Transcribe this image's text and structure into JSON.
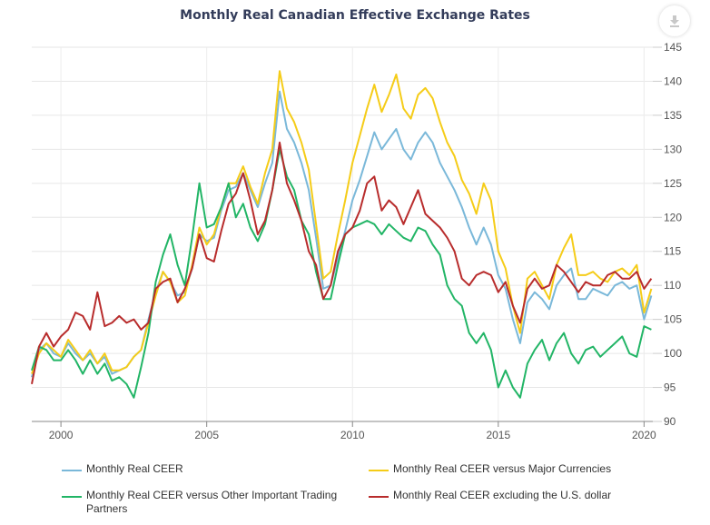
{
  "chart_data": {
    "type": "line",
    "title": "Monthly Real Canadian Effective Exchange Rates",
    "xlabel": "",
    "ylabel": "",
    "xlim": [
      1999.0,
      2020.3
    ],
    "ylim": [
      90,
      145
    ],
    "x_ticks": [
      "2000",
      "2005",
      "2010",
      "2015",
      "2020"
    ],
    "x_tick_values": [
      2000,
      2005,
      2010,
      2015,
      2020
    ],
    "y_ticks": [
      "90",
      "95",
      "100",
      "105",
      "110",
      "115",
      "120",
      "125",
      "130",
      "135",
      "140",
      "145"
    ],
    "y_tick_values": [
      90,
      95,
      100,
      105,
      110,
      115,
      120,
      125,
      130,
      135,
      140,
      145
    ],
    "y_axis_side": "right",
    "grid": true,
    "legend_position": "bottom",
    "x": [
      1999.0,
      1999.25,
      1999.5,
      1999.75,
      2000.0,
      2000.25,
      2000.5,
      2000.75,
      2001.0,
      2001.25,
      2001.5,
      2001.75,
      2002.0,
      2002.25,
      2002.5,
      2002.75,
      2003.0,
      2003.25,
      2003.5,
      2003.75,
      2004.0,
      2004.25,
      2004.5,
      2004.75,
      2005.0,
      2005.25,
      2005.5,
      2005.75,
      2006.0,
      2006.25,
      2006.5,
      2006.75,
      2007.0,
      2007.25,
      2007.5,
      2007.75,
      2008.0,
      2008.25,
      2008.5,
      2008.75,
      2009.0,
      2009.25,
      2009.5,
      2009.75,
      2010.0,
      2010.25,
      2010.5,
      2010.75,
      2011.0,
      2011.25,
      2011.5,
      2011.75,
      2012.0,
      2012.25,
      2012.5,
      2012.75,
      2013.0,
      2013.25,
      2013.5,
      2013.75,
      2014.0,
      2014.25,
      2014.5,
      2014.75,
      2015.0,
      2015.25,
      2015.5,
      2015.75,
      2016.0,
      2016.25,
      2016.5,
      2016.75,
      2017.0,
      2017.25,
      2017.5,
      2017.75,
      2018.0,
      2018.25,
      2018.5,
      2018.75,
      2019.0,
      2019.25,
      2019.5,
      2019.75,
      2020.0,
      2020.25
    ],
    "series": [
      {
        "name": "Monthly Real CEER",
        "color": "#7ab8d9",
        "values": [
          96.5,
          100.5,
          101.5,
          100,
          99.5,
          101.5,
          100,
          99,
          100,
          98.5,
          99.5,
          97,
          97.5,
          98,
          99.5,
          100.5,
          105,
          109,
          112,
          110.5,
          108.5,
          109,
          112.5,
          117.5,
          116.5,
          117,
          121,
          124,
          124.5,
          126.5,
          124,
          121.5,
          125,
          128,
          138.5,
          133,
          131,
          128,
          124,
          117,
          109.5,
          110,
          114,
          118,
          122.5,
          125.5,
          129,
          132.5,
          130,
          131.5,
          133,
          130,
          128.5,
          131,
          132.5,
          131,
          128,
          126,
          124,
          121.5,
          118.5,
          116,
          118.5,
          116,
          111.5,
          109.5,
          105,
          101.5,
          107.5,
          109,
          108,
          106.5,
          110,
          111.5,
          112.5,
          108,
          108,
          109.5,
          109,
          108.5,
          110,
          110.5,
          109.5,
          110,
          105,
          108.5
        ]
      },
      {
        "name": "Monthly Real CEER versus Major Currencies",
        "color": "#f5cc18",
        "values": [
          97,
          100,
          101.5,
          100.5,
          99.5,
          102,
          100.5,
          99,
          100.5,
          98.5,
          100,
          97.5,
          97.5,
          98,
          99.5,
          100.5,
          104.5,
          108.5,
          112,
          110.5,
          107.5,
          108.5,
          113,
          118.5,
          116,
          117.5,
          121.5,
          125,
          125,
          127.5,
          124.5,
          122,
          126.5,
          130,
          141.5,
          136,
          134,
          131,
          127,
          119,
          111,
          112,
          117.5,
          122.5,
          128,
          132,
          136,
          139.5,
          135.5,
          138,
          141,
          136,
          134.5,
          138,
          139,
          137.5,
          134,
          131,
          129,
          125.5,
          123.5,
          120.5,
          125,
          122.5,
          115,
          112.5,
          107,
          103,
          111,
          112,
          110,
          108,
          113,
          115.5,
          117.5,
          111.5,
          111.5,
          112,
          111,
          110.5,
          112,
          112.5,
          111.5,
          113,
          106,
          109.5
        ]
      },
      {
        "name": "Monthly Real CEER versus Other Important Trading Partners",
        "color": "#22b566",
        "values": [
          97.5,
          101,
          100.5,
          99,
          99,
          100.5,
          99,
          97,
          99,
          97,
          98.5,
          96,
          96.5,
          95.5,
          93.5,
          98,
          103,
          110.5,
          114.5,
          117.5,
          113,
          110,
          117,
          125,
          118.5,
          119,
          121.5,
          125,
          120,
          122,
          118.5,
          116.5,
          119,
          124,
          130,
          126,
          124,
          119.5,
          117.5,
          112,
          108,
          108,
          113,
          117.5,
          118.5,
          119,
          119.5,
          119,
          117.5,
          119,
          118,
          117,
          116.5,
          118.5,
          118,
          116,
          114.5,
          110,
          108,
          107,
          103,
          101.5,
          103,
          100.5,
          95,
          97.5,
          95,
          93.5,
          98.5,
          100.5,
          102,
          99,
          101.5,
          103,
          100,
          98.5,
          100.5,
          101,
          99.5,
          100.5,
          101.5,
          102.5,
          100,
          99.5,
          104,
          103.5
        ]
      },
      {
        "name": "Monthly Real CEER excluding the U.S. dollar",
        "color": "#b82c2c",
        "values": [
          95.5,
          101,
          103,
          101,
          102.5,
          103.5,
          106,
          105.5,
          103.5,
          109,
          104,
          104.5,
          105.5,
          104.5,
          105,
          103.5,
          104.5,
          109.5,
          110.5,
          111,
          107.5,
          109.5,
          112.5,
          117.5,
          114,
          113.5,
          118,
          122,
          123.5,
          126.5,
          122.5,
          117.5,
          119.5,
          124,
          131,
          125,
          122.5,
          119.5,
          115,
          113,
          108,
          110,
          115,
          117.5,
          118.5,
          121,
          125,
          126,
          121,
          122.5,
          121.5,
          119,
          121.5,
          124,
          120.5,
          119.5,
          118.5,
          117,
          115,
          111,
          110,
          111.5,
          112,
          111.5,
          109,
          110.5,
          107,
          104.5,
          109.5,
          111,
          109.5,
          110,
          113,
          112,
          110.5,
          109,
          110.5,
          110,
          110,
          111.5,
          112,
          111,
          111,
          112,
          109.5,
          111
        ]
      }
    ]
  },
  "ui": {
    "download_button_icon": "download-icon"
  }
}
